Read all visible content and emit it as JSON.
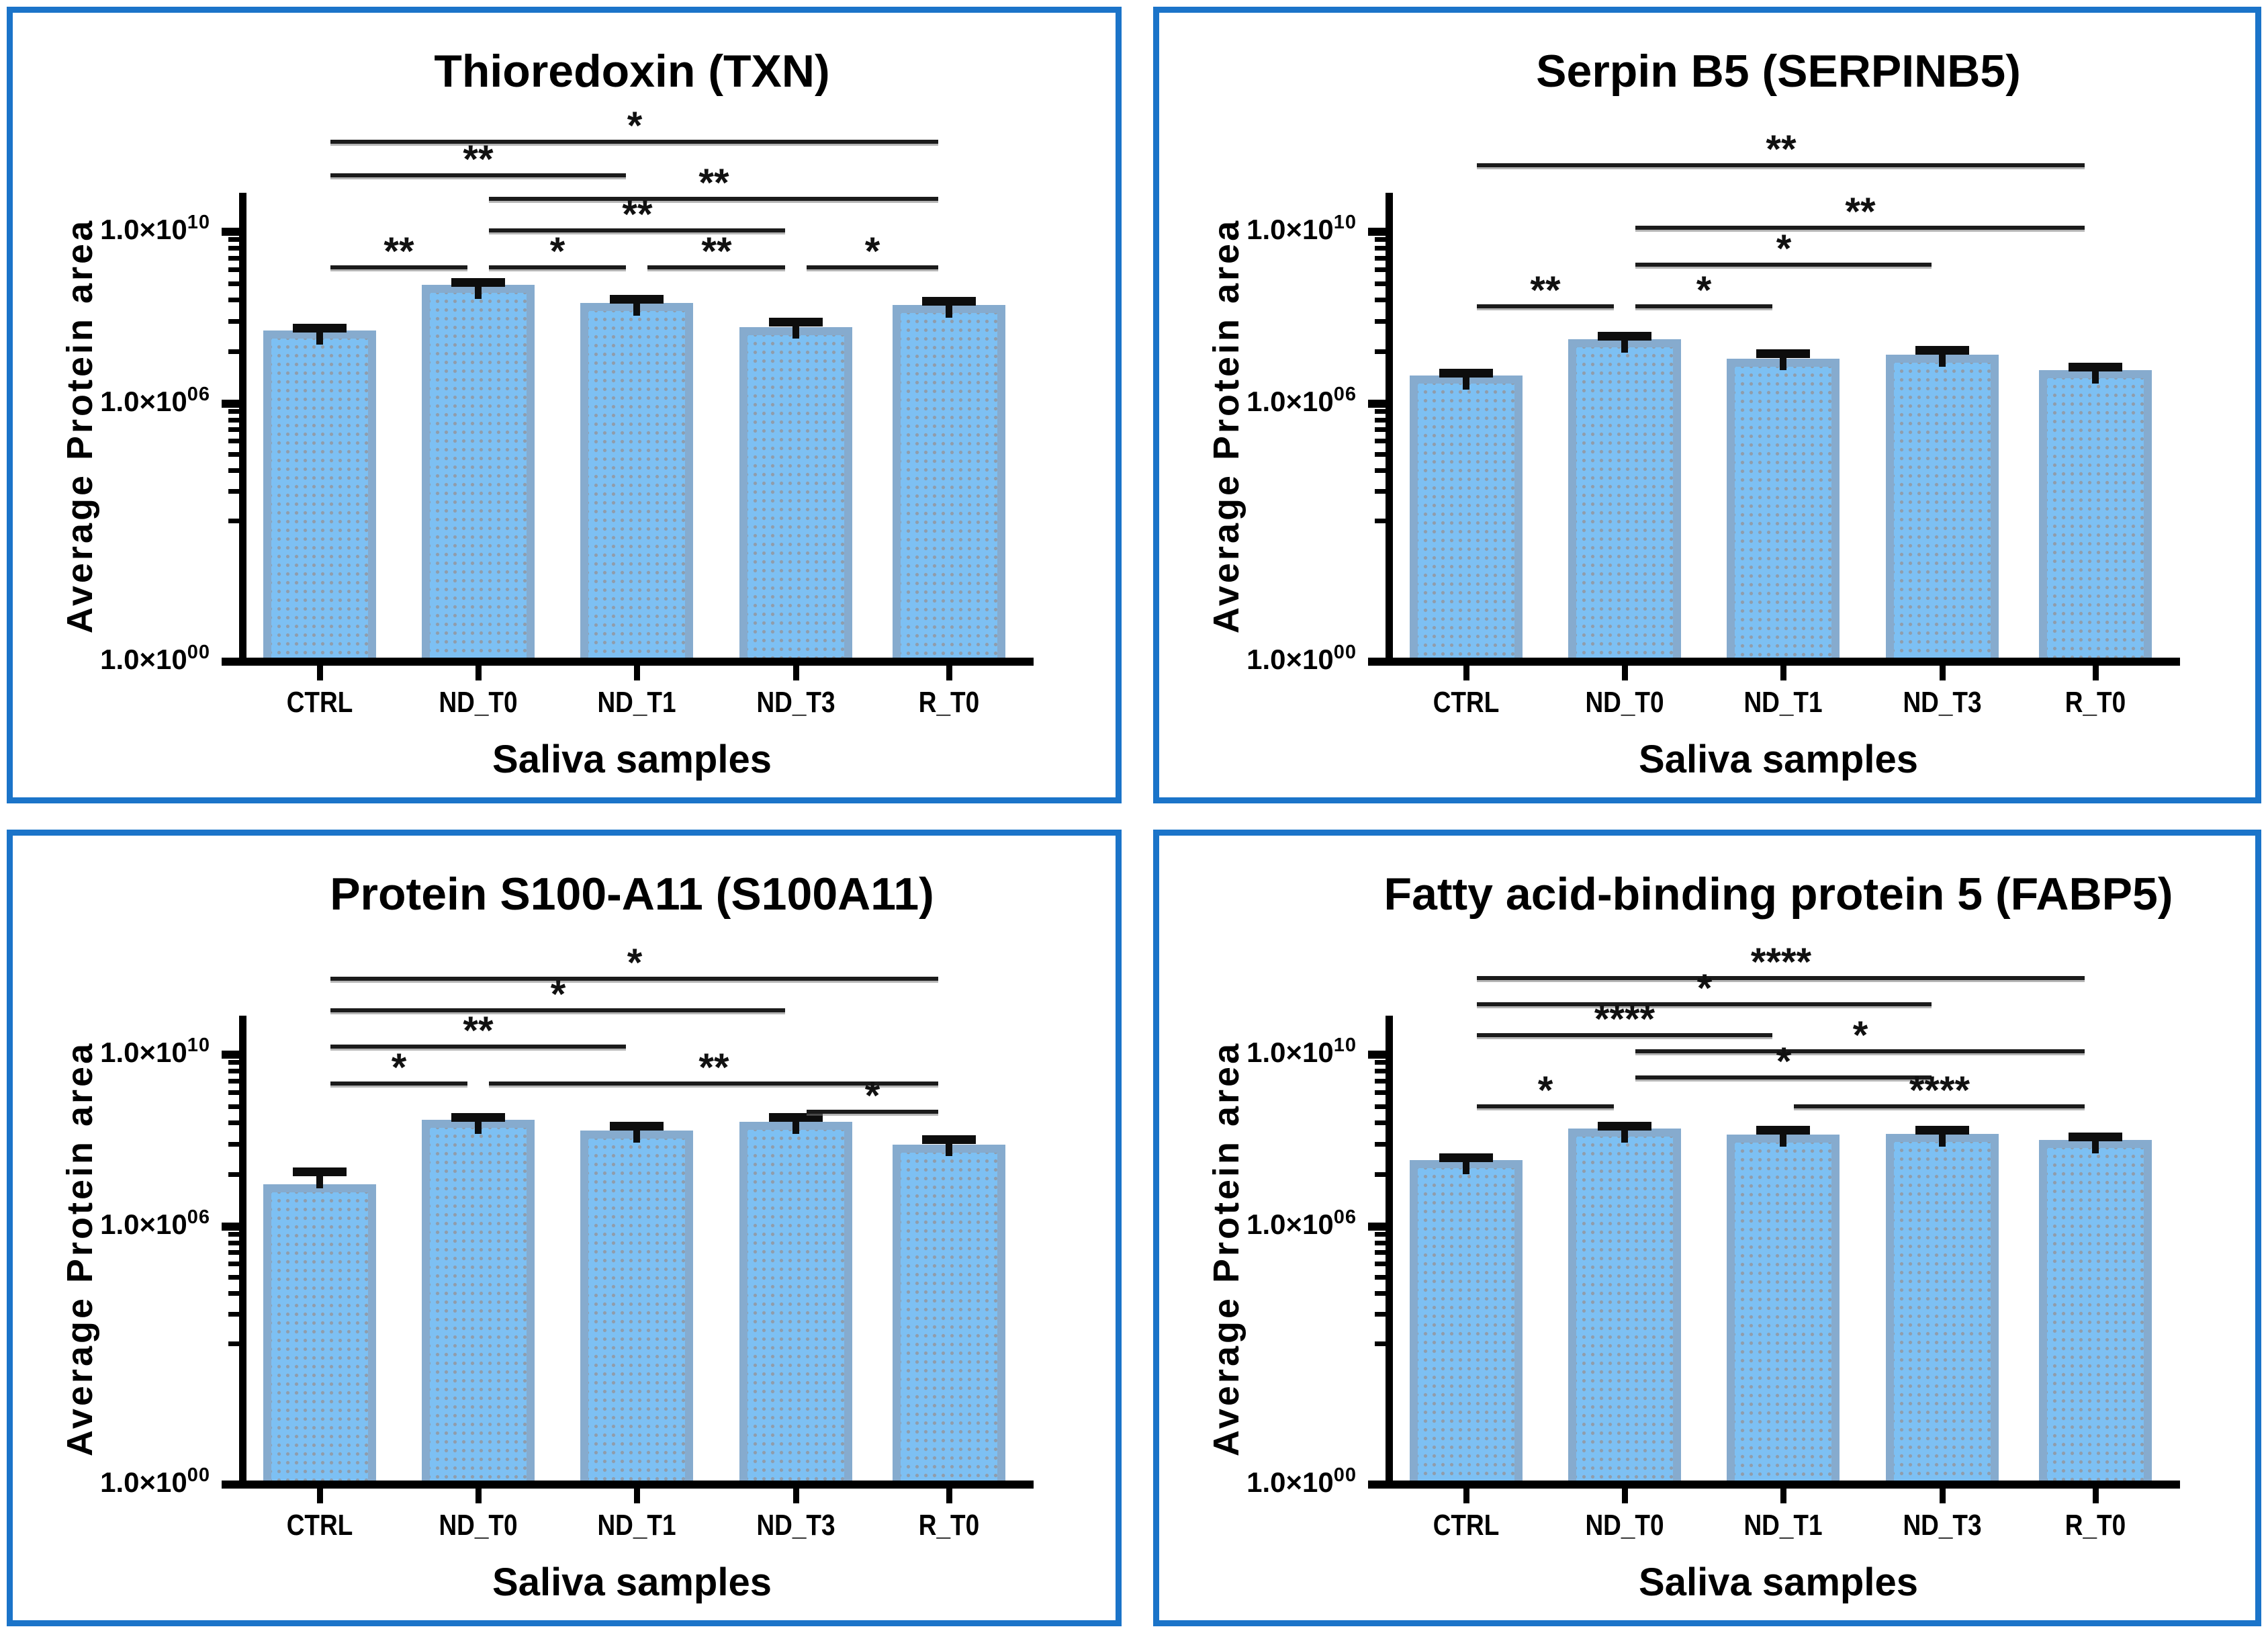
{
  "figure": {
    "background": "#ffffff",
    "frame_color": "#1b74c9",
    "grid": "off",
    "legend": "none"
  },
  "style_colors": {
    "bar_fill": "#7dc0f3",
    "bar_border": "#86abce",
    "bar_dot_pattern": "#909dab",
    "error_bar": "#0d0d0d",
    "axis": "#000000",
    "significance": "#1b1b1b"
  },
  "shared_axis": {
    "x_title": "Saliva samples",
    "y_title": "Average Protein area",
    "categories": [
      "CTRL",
      "ND_T0",
      "ND_T1",
      "ND_T3",
      "R_T0"
    ],
    "y_scale": "log",
    "y_ticks": [
      {
        "label_mantissa": "1.0×10",
        "label_exp": "10",
        "log10": 10
      },
      {
        "label_mantissa": "1.0×10",
        "label_exp": "06",
        "log10": 6
      },
      {
        "label_mantissa": "1.0×10",
        "label_exp": "00",
        "log10": 0
      }
    ],
    "ylim": [
      1,
      31622776601
    ]
  },
  "chart_data": [
    {
      "type": "bar",
      "title": "Thioredoxin (TXN)",
      "xlabel": "Saliva samples",
      "ylabel": "Average Protein area",
      "categories": [
        "CTRL",
        "ND_T0",
        "ND_T1",
        "ND_T3",
        "R_T0"
      ],
      "values": [
        50000000.0,
        580000000.0,
        220000000.0,
        60000000.0,
        200000000.0
      ],
      "upper_error_log10": [
        0.06,
        0.06,
        0.08,
        0.12,
        0.08
      ],
      "significance": [
        {
          "from": "CTRL",
          "to": "R_T0",
          "label": "*",
          "y": 189
        },
        {
          "from": "CTRL",
          "to": "ND_T1",
          "label": "**",
          "y": 239
        },
        {
          "from": "ND_T0",
          "to": "R_T0",
          "label": "**",
          "y": 274
        },
        {
          "from": "ND_T0",
          "to": "ND_T3",
          "label": "**",
          "y": 321
        },
        {
          "from": "CTRL",
          "to": "ND_T0",
          "label": "**",
          "y": 376
        },
        {
          "from": "ND_T0",
          "to": "ND_T1",
          "label": "*",
          "y": 376
        },
        {
          "from": "ND_T1",
          "to": "ND_T3",
          "label": "**",
          "y": 376
        },
        {
          "from": "ND_T3",
          "to": "R_T0",
          "label": "*",
          "y": 376
        }
      ]
    },
    {
      "type": "bar",
      "title": "Serpin B5 (SERPINB5)",
      "xlabel": "Saliva samples",
      "ylabel": "Average Protein area",
      "categories": [
        "CTRL",
        "ND_T0",
        "ND_T1",
        "ND_T3",
        "R_T0"
      ],
      "values": [
        4500000.0,
        32000000.0,
        11000000.0,
        14000000.0,
        6000000.0
      ],
      "upper_error_log10": [
        0.06,
        0.06,
        0.12,
        0.1,
        0.08
      ],
      "significance": [
        {
          "from": "CTRL",
          "to": "R_T0",
          "label": "**",
          "y": 224
        },
        {
          "from": "ND_T0",
          "to": "R_T0",
          "label": "**",
          "y": 317
        },
        {
          "from": "ND_T0",
          "to": "ND_T3",
          "label": "*",
          "y": 372
        },
        {
          "from": "CTRL",
          "to": "ND_T0",
          "label": "**",
          "y": 434
        },
        {
          "from": "ND_T0",
          "to": "ND_T1",
          "label": "*",
          "y": 434
        }
      ]
    },
    {
      "type": "bar",
      "title": "Protein S100-A11 (S100A11)",
      "xlabel": "Saliva samples",
      "ylabel": "Average Protein area",
      "categories": [
        "CTRL",
        "ND_T0",
        "ND_T1",
        "ND_T3",
        "R_T0"
      ],
      "values": [
        9500000.0,
        300000000.0,
        170000000.0,
        270000000.0,
        80000000.0
      ],
      "upper_error_log10": [
        0.3,
        0.06,
        0.1,
        0.1,
        0.12
      ],
      "significance": [
        {
          "from": "CTRL",
          "to": "R_T0",
          "label": "*",
          "y": 210
        },
        {
          "from": "CTRL",
          "to": "ND_T3",
          "label": "*",
          "y": 257
        },
        {
          "from": "CTRL",
          "to": "ND_T1",
          "label": "**",
          "y": 311
        },
        {
          "from": "CTRL",
          "to": "ND_T0",
          "label": "*",
          "y": 366
        },
        {
          "from": "ND_T0",
          "to": "R_T0",
          "label": "**",
          "y": 366
        },
        {
          "from": "ND_T3",
          "to": "R_T0",
          "label": "*",
          "y": 408
        }
      ]
    },
    {
      "type": "bar",
      "title": "Fatty acid-binding protein 5 (FABP5)",
      "xlabel": "Saliva samples",
      "ylabel": "Average Protein area",
      "categories": [
        "CTRL",
        "ND_T0",
        "ND_T1",
        "ND_T3",
        "R_T0"
      ],
      "values": [
        35000000.0,
        190000000.0,
        140000000.0,
        145000000.0,
        105000000.0
      ],
      "upper_error_log10": [
        0.06,
        0.06,
        0.1,
        0.08,
        0.06
      ],
      "significance": [
        {
          "from": "CTRL",
          "to": "R_T0",
          "label": "****",
          "y": 209
        },
        {
          "from": "CTRL",
          "to": "ND_T3",
          "label": "*",
          "y": 248
        },
        {
          "from": "CTRL",
          "to": "ND_T1",
          "label": "****",
          "y": 294
        },
        {
          "from": "ND_T0",
          "to": "R_T0",
          "label": "*",
          "y": 318
        },
        {
          "from": "ND_T0",
          "to": "ND_T3",
          "label": "*",
          "y": 357
        },
        {
          "from": "CTRL",
          "to": "ND_T0",
          "label": "*",
          "y": 400
        },
        {
          "from": "ND_T1",
          "to": "R_T0",
          "label": "****",
          "y": 400
        }
      ]
    }
  ]
}
